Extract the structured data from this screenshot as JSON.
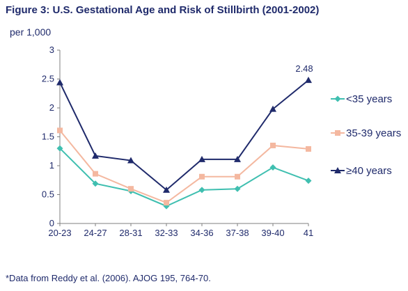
{
  "chart_data": {
    "type": "line",
    "title": "Figure 3: U.S. Gestational Age and Risk of Stillbirth (2001-2002)",
    "ylabel": "per 1,000",
    "xlabel": "",
    "categories": [
      "20-23",
      "24-27",
      "28-31",
      "32-33",
      "34-36",
      "37-38",
      "39-40",
      "41"
    ],
    "ylim": [
      0,
      3
    ],
    "yticks": [
      "0",
      "0.5",
      "1",
      "1.5",
      "2",
      "2.5",
      "3"
    ],
    "grid": false,
    "legend_position": "right",
    "series": [
      {
        "name": "<35 years",
        "values": [
          1.3,
          0.69,
          0.56,
          0.3,
          0.58,
          0.6,
          0.97,
          0.74
        ],
        "color": "#3fbfb0",
        "marker": "diamond"
      },
      {
        "name": "35-39 years",
        "values": [
          1.61,
          0.86,
          0.6,
          0.36,
          0.81,
          0.81,
          1.35,
          1.29
        ],
        "color": "#f4b8a0",
        "marker": "square"
      },
      {
        "name": "≥40 years",
        "values": [
          2.44,
          1.17,
          1.09,
          0.58,
          1.11,
          1.11,
          1.98,
          2.48
        ],
        "color": "#1f2a6b",
        "marker": "triangle"
      }
    ],
    "annotations": [
      {
        "series": 2,
        "index": 7,
        "text": "2.48"
      }
    ],
    "footnote": "*Data from Reddy et al. (2006). AJOG 195, 764-70."
  }
}
